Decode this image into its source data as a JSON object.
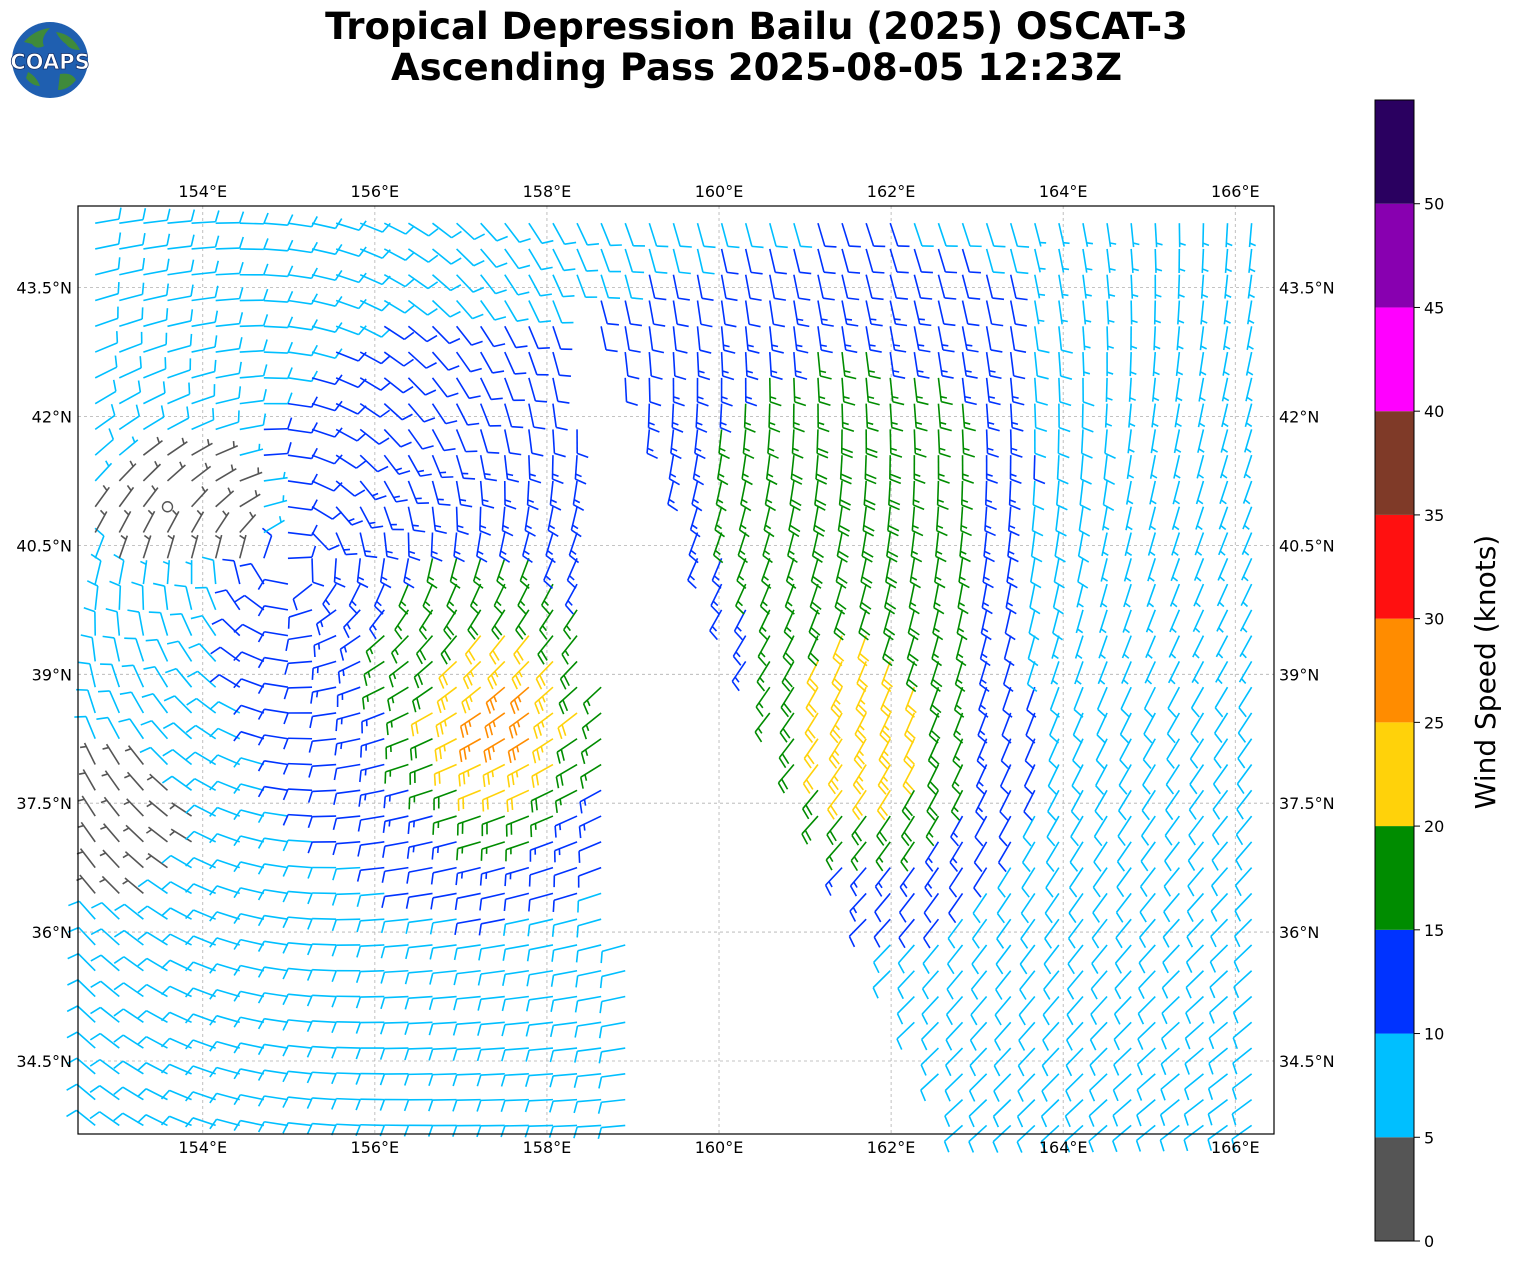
{
  "title": {
    "line1": "Tropical Depression Bailu (2025) OSCAT-3",
    "line2": "Ascending Pass 2025-08-05 12:23Z"
  },
  "logo": {
    "text": "COAPS",
    "ocean": "#1f5fb0",
    "land": "#3f8a3a",
    "text_color": "#ffffff"
  },
  "map": {
    "lon_range": [
      152.55,
      166.45
    ],
    "lat_range": [
      33.65,
      44.45
    ],
    "lon_ticks": [
      "154°E",
      "156°E",
      "158°E",
      "160°E",
      "162°E",
      "164°E",
      "166°E"
    ],
    "lon_tick_values": [
      154,
      156,
      158,
      160,
      162,
      164,
      166
    ],
    "lat_ticks": [
      "43.5°N",
      "42°N",
      "40.5°N",
      "39°N",
      "37.5°N",
      "36°N",
      "34.5°N"
    ],
    "lat_tick_values": [
      43.5,
      42,
      40.5,
      39,
      37.5,
      36,
      34.5
    ],
    "grid": true,
    "grid_color": "#b0b0b0",
    "swath_gap": "white no-data band between the two ascending swaths"
  },
  "colorbar": {
    "label": "Wind Speed (knots)",
    "tick_labels": [
      "0",
      "5",
      "10",
      "15",
      "20",
      "25",
      "30",
      "35",
      "40",
      "45",
      "50"
    ],
    "bins": [
      {
        "min": 0,
        "max": 5,
        "color": "#555555"
      },
      {
        "min": 5,
        "max": 10,
        "color": "#00bfff"
      },
      {
        "min": 10,
        "max": 15,
        "color": "#0033ff"
      },
      {
        "min": 15,
        "max": 20,
        "color": "#008c00"
      },
      {
        "min": 20,
        "max": 25,
        "color": "#ffd20a"
      },
      {
        "min": 25,
        "max": 30,
        "color": "#ff8c00"
      },
      {
        "min": 30,
        "max": 35,
        "color": "#ff1010"
      },
      {
        "min": 35,
        "max": 40,
        "color": "#7f3a28"
      },
      {
        "min": 40,
        "max": 45,
        "color": "#ff00ff"
      },
      {
        "min": 45,
        "max": 50,
        "color": "#8800b0"
      },
      {
        "min": 50,
        "max": 55,
        "color": "#2a0060"
      }
    ]
  }
}
